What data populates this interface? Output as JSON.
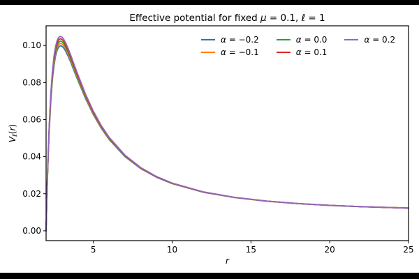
{
  "figure": {
    "letterbox_color": "#000000",
    "canvas_color": "#ffffff",
    "text_color": "#000000"
  },
  "chart_data": {
    "type": "line",
    "title": "Effective potential for fixed μ = 0.1, ℓ = 1",
    "title_parts": [
      {
        "text": "Effective potential for fixed ",
        "italic": false
      },
      {
        "text": "μ",
        "italic": true
      },
      {
        "text": " = 0.1, ",
        "italic": false
      },
      {
        "text": "ℓ",
        "italic": true
      },
      {
        "text": " = 1",
        "italic": false
      }
    ],
    "xlabel": "r",
    "ylabel": "Vℓ(r)",
    "ylabel_parts": [
      {
        "text": "V",
        "italic": true,
        "sub": false
      },
      {
        "text": "ℓ",
        "italic": true,
        "sub": true
      },
      {
        "text": "(",
        "italic": false,
        "sub": false
      },
      {
        "text": "r",
        "italic": true,
        "sub": false
      },
      {
        "text": ")",
        "italic": false,
        "sub": false
      }
    ],
    "xlim": [
      2,
      25
    ],
    "ylim": [
      -0.0053,
      0.1106
    ],
    "xticks": [
      5,
      10,
      15,
      20,
      25
    ],
    "yticks": [
      0.0,
      0.02,
      0.04,
      0.06,
      0.08,
      0.1
    ],
    "grid": false,
    "legend": {
      "position": "upper right",
      "frame": false,
      "ncols": 3,
      "rows_per_col": 2
    },
    "x": [
      2,
      2.05,
      2.1,
      2.15,
      2.2,
      2.3,
      2.4,
      2.5,
      2.6,
      2.7,
      2.8,
      2.9,
      3,
      3.1,
      3.2,
      3.4,
      3.6,
      3.8,
      4,
      4.5,
      5,
      5.5,
      6,
      7,
      8,
      9,
      10,
      12,
      14,
      16,
      18,
      20,
      22,
      25
    ],
    "series": [
      {
        "label": "α = −0.2",
        "label_sym": "α",
        "label_rest": " = −0.2",
        "color": "#1f77b4",
        "values": [
          0,
          0.01694,
          0.03133,
          0.04352,
          0.05384,
          0.06992,
          0.08124,
          0.08904,
          0.09422,
          0.09743,
          0.09917,
          0.09981,
          0.09963,
          0.09884,
          0.09759,
          0.09421,
          0.09018,
          0.08576,
          0.08156,
          0.0714,
          0.06264,
          0.05532,
          0.04926,
          0.04005,
          0.03357,
          0.0289,
          0.02544,
          0.02077,
          0.01788,
          0.01597,
          0.01465,
          0.0137,
          0.013,
          0.01225
        ]
      },
      {
        "label": "α = −0.1",
        "label_sym": "α",
        "label_rest": " = −0.1",
        "color": "#ff7f0e",
        "values": [
          0,
          0.01723,
          0.03184,
          0.04422,
          0.0547,
          0.07099,
          0.08244,
          0.09032,
          0.09553,
          0.09875,
          0.10047,
          0.10109,
          0.10086,
          0.10003,
          0.09874,
          0.09526,
          0.09113,
          0.08662,
          0.08234,
          0.07201,
          0.06312,
          0.05571,
          0.04957,
          0.04025,
          0.03372,
          0.02901,
          0.02552,
          0.02082,
          0.01791,
          0.01599,
          0.01466,
          0.01371,
          0.01301,
          0.01226
        ]
      },
      {
        "label": "α = 0.0",
        "label_sym": "α",
        "label_rest": " = 0.0",
        "color": "#2ca02c",
        "values": [
          0,
          0.01751,
          0.03236,
          0.04492,
          0.05555,
          0.07206,
          0.08365,
          0.0916,
          0.09684,
          0.10007,
          0.10177,
          0.10236,
          0.1021,
          0.10122,
          0.09988,
          0.09631,
          0.09208,
          0.08748,
          0.08313,
          0.07262,
          0.0636,
          0.05609,
          0.04988,
          0.04046,
          0.03387,
          0.02911,
          0.0256,
          0.02087,
          0.01794,
          0.01601,
          0.01468,
          0.01373,
          0.01302,
          0.01226
        ]
      },
      {
        "label": "α = 0.1",
        "label_sym": "α",
        "label_rest": " = 0.1",
        "color": "#d62728",
        "values": [
          0,
          0.01779,
          0.03287,
          0.04562,
          0.0564,
          0.07313,
          0.08486,
          0.09288,
          0.09815,
          0.10139,
          0.10307,
          0.10363,
          0.10333,
          0.10241,
          0.10102,
          0.09736,
          0.09303,
          0.08835,
          0.08391,
          0.07323,
          0.06408,
          0.05647,
          0.05019,
          0.04067,
          0.03401,
          0.02922,
          0.02568,
          0.02092,
          0.01797,
          0.01603,
          0.0147,
          0.01374,
          0.01303,
          0.01227
        ]
      },
      {
        "label": "α = 0.2",
        "label_sym": "α",
        "label_rest": " = 0.2",
        "color": "#9467bd",
        "values": [
          0,
          0.01808,
          0.03339,
          0.04633,
          0.05726,
          0.0742,
          0.08606,
          0.09416,
          0.09947,
          0.1027,
          0.10438,
          0.1049,
          0.10457,
          0.1036,
          0.10217,
          0.0984,
          0.09399,
          0.08921,
          0.08469,
          0.07384,
          0.06456,
          0.05685,
          0.05049,
          0.04088,
          0.03416,
          0.02933,
          0.02576,
          0.02097,
          0.018,
          0.01605,
          0.01471,
          0.01375,
          0.01304,
          0.01227
        ]
      }
    ]
  }
}
